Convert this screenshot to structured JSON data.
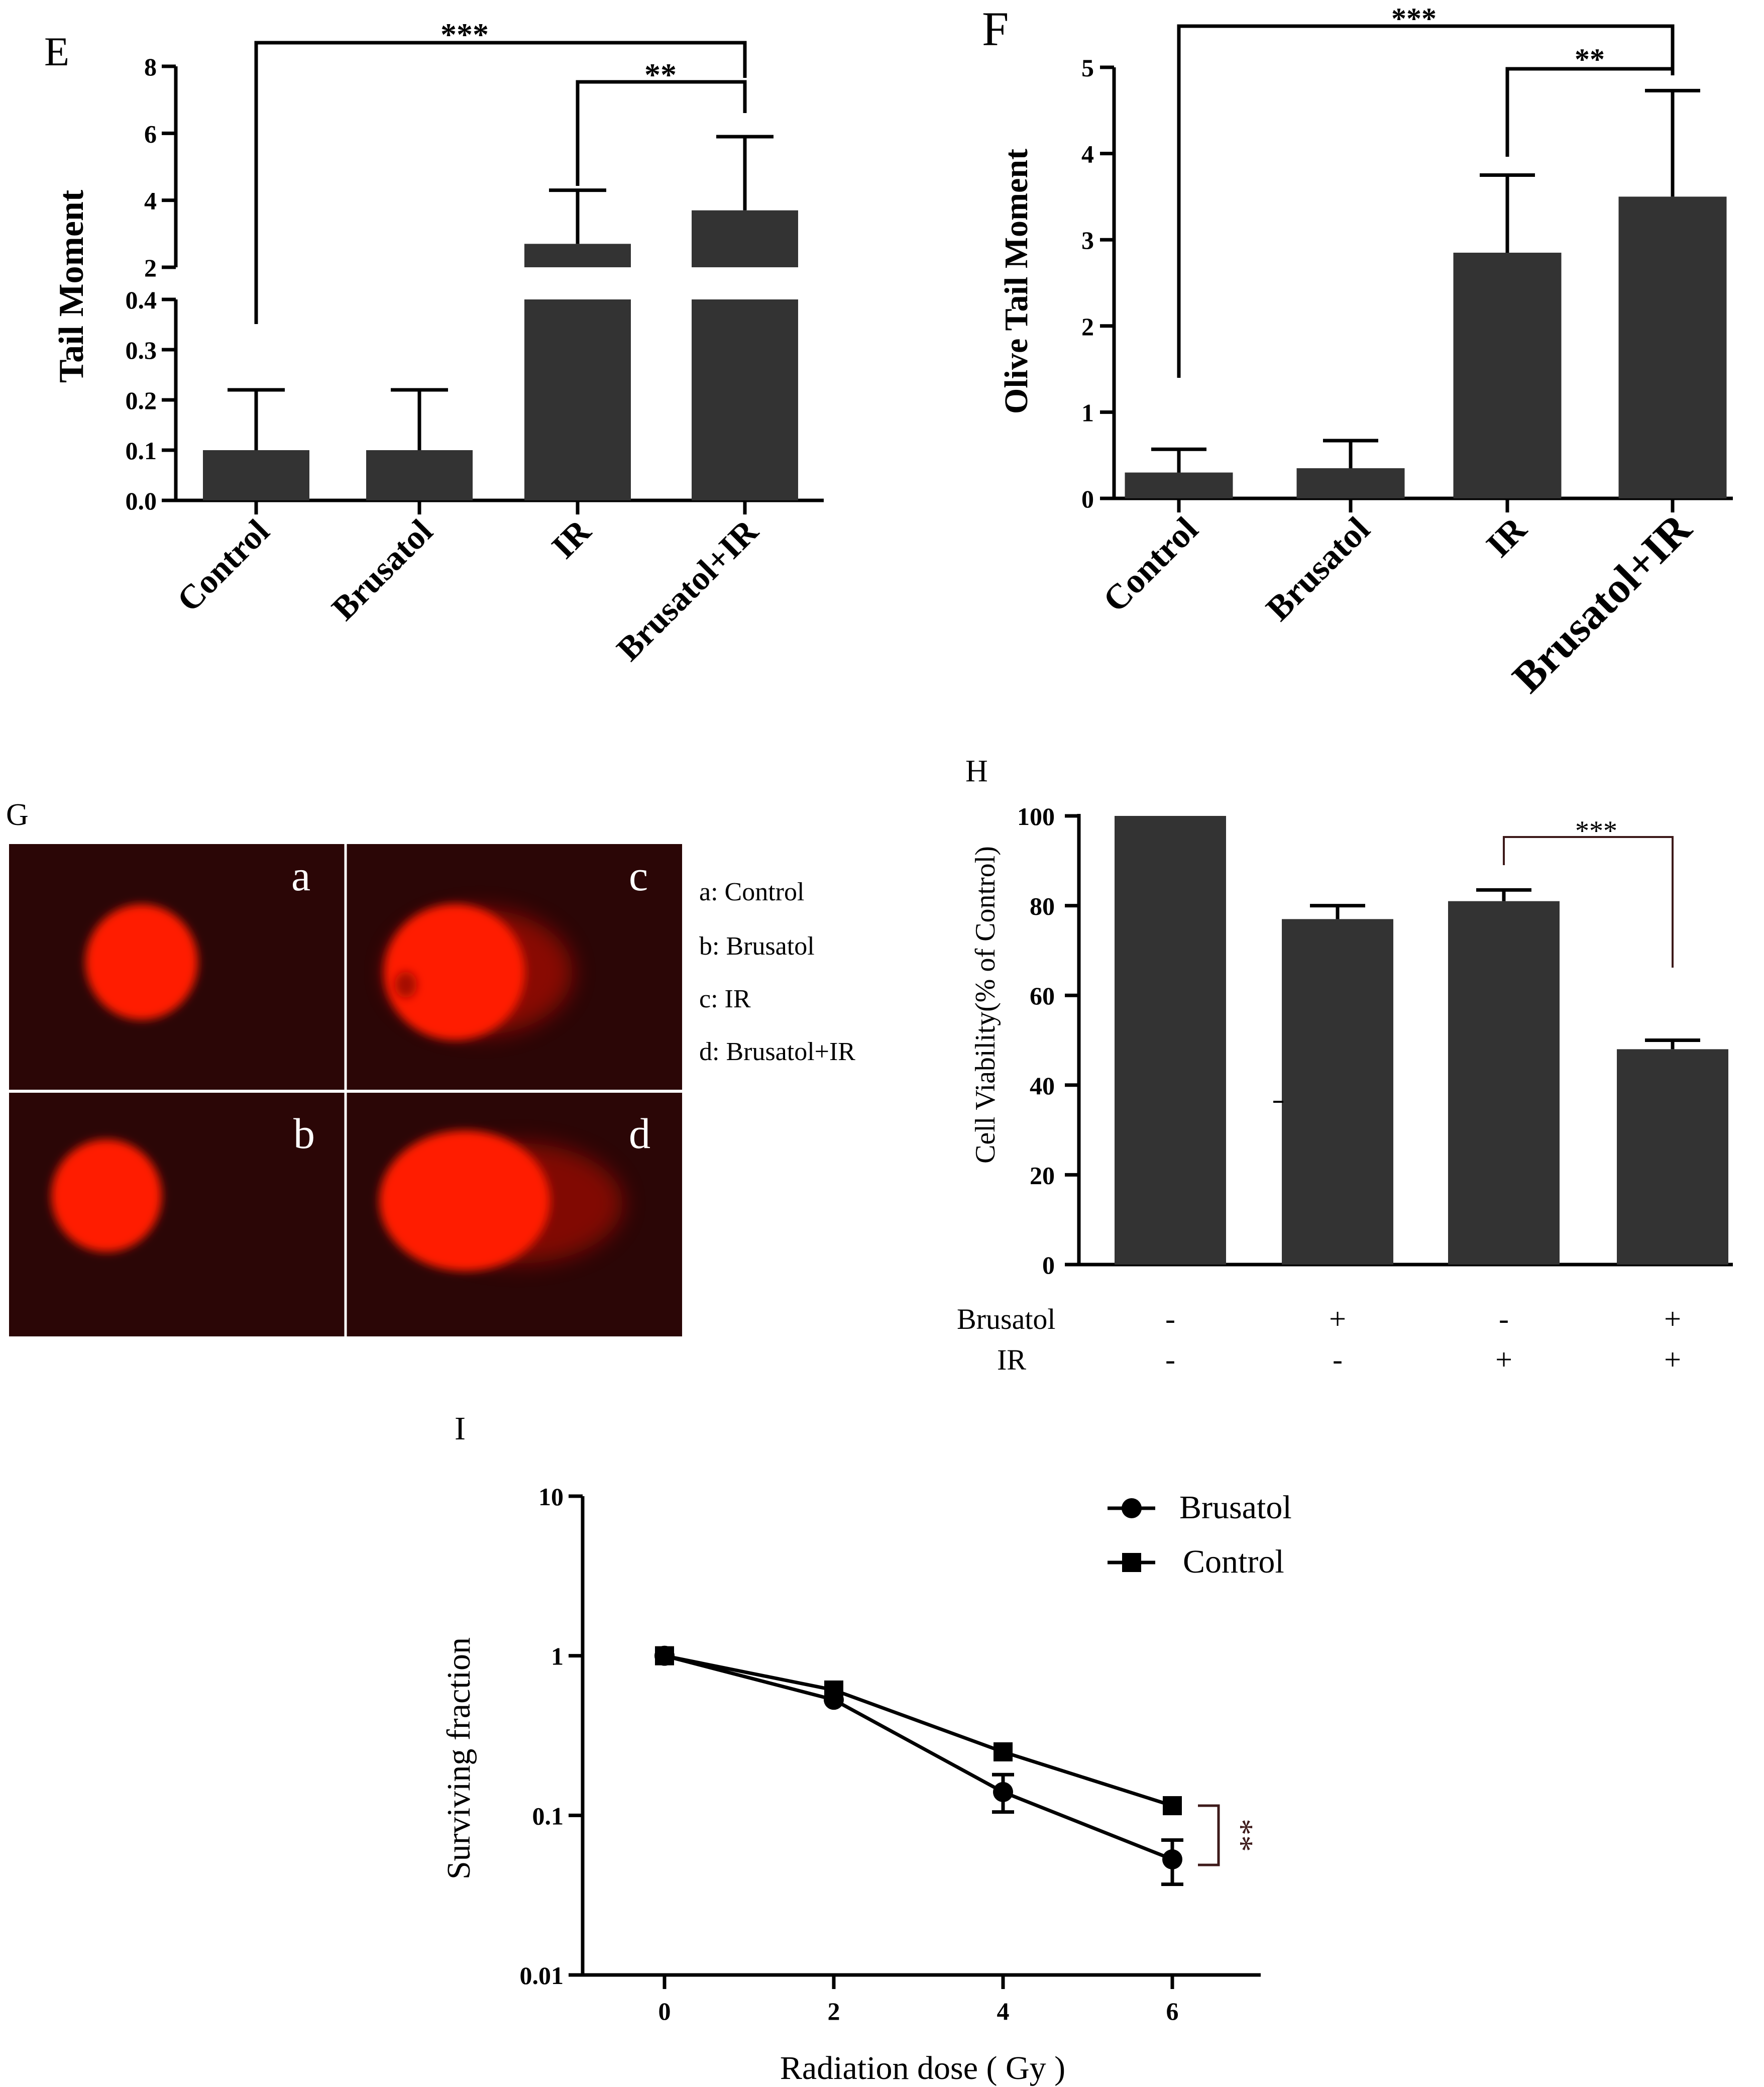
{
  "panels": {
    "E": "E",
    "F": "F",
    "G": "G",
    "H": "H",
    "I": "I"
  },
  "chart_data": [
    {
      "id": "E",
      "type": "bar",
      "title": "",
      "ylabel": "Tail  Moment",
      "categories": [
        "Control",
        "Brusatol",
        "IR",
        "Brusatol+IR"
      ],
      "values": [
        0.1,
        0.1,
        2.7,
        3.7
      ],
      "errors": [
        0.12,
        0.12,
        1.6,
        2.2
      ],
      "ylim_lower": [
        0,
        0.4
      ],
      "ylim_upper": [
        2,
        8
      ],
      "axis_break": true,
      "yticks_lower": [
        "0.0",
        "0.1",
        "0.2",
        "0.3",
        "0.4"
      ],
      "yticks_upper": [
        "2",
        "4",
        "6",
        "8"
      ],
      "significance": [
        {
          "from": "Control",
          "to": "Brusatol+IR",
          "label": "***"
        },
        {
          "from": "IR",
          "to": "Brusatol+IR",
          "label": "**"
        }
      ]
    },
    {
      "id": "F",
      "type": "bar",
      "title": "",
      "ylabel": "Olive Tail Moment",
      "categories": [
        "Control",
        "Brusatol",
        "IR",
        "Brusatol+IR"
      ],
      "values": [
        0.3,
        0.35,
        2.85,
        3.5
      ],
      "errors": [
        0.27,
        0.32,
        0.9,
        1.23
      ],
      "ylim": [
        0,
        5
      ],
      "yticks": [
        "0",
        "1",
        "2",
        "3",
        "4",
        "5"
      ],
      "significance": [
        {
          "from": "Control",
          "to": "Brusatol+IR",
          "label": "***"
        },
        {
          "from": "IR",
          "to": "Brusatol+IR",
          "label": "**"
        }
      ]
    },
    {
      "id": "H",
      "type": "bar",
      "title": "",
      "ylabel": "Cell Viability(% of  Control)",
      "values": [
        100,
        77,
        81,
        48
      ],
      "errors": [
        0,
        3,
        2.5,
        2
      ],
      "ylim": [
        0,
        100
      ],
      "yticks": [
        "0",
        "20",
        "40",
        "60",
        "80",
        "100"
      ],
      "conditions": {
        "Brusatol": {
          "label": "Brusatol",
          "marks": [
            "-",
            "+",
            "-",
            "+"
          ]
        },
        "IR": {
          "label": "IR",
          "marks": [
            "-",
            "-",
            "+",
            "+"
          ]
        }
      },
      "significance": [
        {
          "from": 3,
          "to": 4,
          "label": "***"
        }
      ]
    },
    {
      "id": "I",
      "type": "line",
      "title": "",
      "xlabel": "Radiation dose ( Gy )",
      "ylabel": "Surviving  fraction",
      "yscale": "log",
      "ylim": [
        0.01,
        10
      ],
      "yticks": [
        "0.01",
        "0.1",
        "1",
        "10"
      ],
      "xticks": [
        "0",
        "2",
        "4",
        "6"
      ],
      "x": [
        0,
        2,
        4,
        6
      ],
      "series": [
        {
          "name": "Brusatol",
          "marker": "circle",
          "values": [
            1.0,
            0.53,
            0.14,
            0.053
          ],
          "errors_low": [
            0,
            0,
            0.035,
            0.016
          ],
          "errors_high": [
            0,
            0,
            0.04,
            0.017
          ]
        },
        {
          "name": "Control",
          "marker": "square",
          "values": [
            1.0,
            0.61,
            0.25,
            0.115
          ]
        }
      ],
      "significance": [
        {
          "at": 6,
          "label": "**"
        }
      ]
    }
  ],
  "comet": {
    "tiles": [
      "a",
      "b",
      "c",
      "d"
    ],
    "legend": [
      "a: Control",
      "b: Brusatol",
      "c: IR",
      "d: Brusatol+IR"
    ],
    "color": "#ff1a00",
    "background": "#2b0606"
  },
  "colors": {
    "bar": "#333333",
    "axis": "#000000",
    "bracket": "#000000",
    "h_bracket": "#3d1a1a"
  }
}
